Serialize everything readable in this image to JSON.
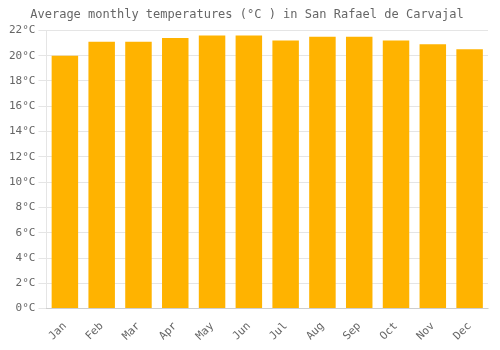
{
  "chart_data": {
    "type": "bar",
    "title": "Average monthly temperatures (°C ) in San Rafael de Carvajal",
    "categories": [
      "Jan",
      "Feb",
      "Mar",
      "Apr",
      "May",
      "Jun",
      "Jul",
      "Aug",
      "Sep",
      "Oct",
      "Nov",
      "Dec"
    ],
    "values": [
      20.0,
      21.1,
      21.1,
      21.4,
      21.6,
      21.6,
      21.2,
      21.5,
      21.5,
      21.2,
      20.9,
      20.5
    ],
    "color": "#FFB300",
    "ylim": [
      0,
      22
    ],
    "yticks": [
      {
        "value": 0,
        "label": "0°C"
      },
      {
        "value": 2,
        "label": "2°C"
      },
      {
        "value": 4,
        "label": "4°C"
      },
      {
        "value": 6,
        "label": "6°C"
      },
      {
        "value": 8,
        "label": "8°C"
      },
      {
        "value": 10,
        "label": "10°C"
      },
      {
        "value": 12,
        "label": "12°C"
      },
      {
        "value": 14,
        "label": "14°C"
      },
      {
        "value": 16,
        "label": "16°C"
      },
      {
        "value": 18,
        "label": "18°C"
      },
      {
        "value": 20,
        "label": "20°C"
      },
      {
        "value": 22,
        "label": "22°C"
      }
    ],
    "grid": true
  }
}
